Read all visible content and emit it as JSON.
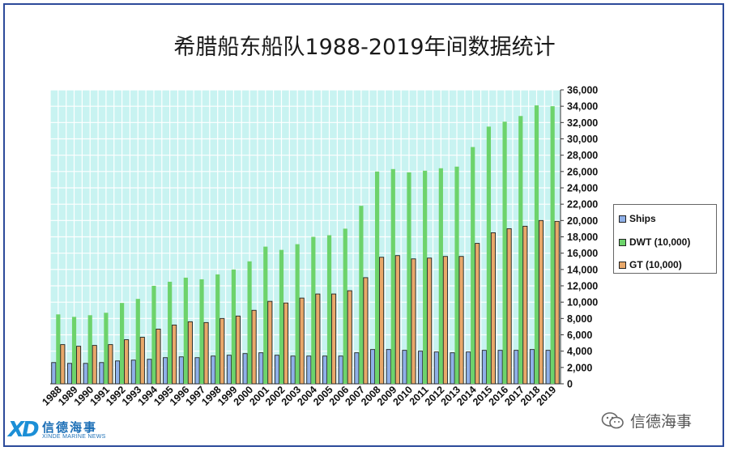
{
  "title": "希腊船东船队1988-2019年间数据统计",
  "colors": {
    "ships": "#8fb0e8",
    "dwt": "#6dd36b",
    "gt": "#e8a86a",
    "plot_bg": "#c8f3f1",
    "grid": "#ffffff",
    "frame": "#2c4a9a"
  },
  "chart_data": {
    "type": "bar",
    "title": "希腊船东船队1988-2019年间数据统计",
    "categories": [
      "1988",
      "1989",
      "1990",
      "1991",
      "1992",
      "1993",
      "1994",
      "1995",
      "1996",
      "1997",
      "1998",
      "1999",
      "2000",
      "2001",
      "2002",
      "2003",
      "2004",
      "2005",
      "2006",
      "2007",
      "2008",
      "2009",
      "2010",
      "2011",
      "2012",
      "2013",
      "2014",
      "2015",
      "2016",
      "2017",
      "2018",
      "2019"
    ],
    "series": [
      {
        "name": "Ships",
        "values": [
          2600,
          2500,
          2500,
          2600,
          2800,
          2900,
          3000,
          3200,
          3300,
          3200,
          3400,
          3500,
          3700,
          3800,
          3500,
          3400,
          3400,
          3400,
          3400,
          3800,
          4200,
          4200,
          4100,
          4000,
          3900,
          3800,
          3900,
          4100,
          4100,
          4100,
          4200,
          4100
        ]
      },
      {
        "name": "DWT (10,000)",
        "values": [
          8500,
          8200,
          8400,
          8700,
          9900,
          10400,
          12000,
          12500,
          13000,
          12800,
          13400,
          14000,
          15000,
          16800,
          16400,
          17100,
          18000,
          18200,
          19000,
          21800,
          26000,
          26300,
          25900,
          26100,
          26400,
          26600,
          29000,
          31500,
          32100,
          32800,
          34100,
          34000
        ]
      },
      {
        "name": "GT (10,000)",
        "values": [
          4800,
          4600,
          4700,
          4800,
          5400,
          5700,
          6700,
          7200,
          7600,
          7500,
          8000,
          8300,
          9000,
          10100,
          9900,
          10500,
          11000,
          11000,
          11400,
          13000,
          15500,
          15700,
          15300,
          15400,
          15600,
          15600,
          17200,
          18500,
          19000,
          19300,
          20000,
          19900
        ]
      }
    ],
    "ylim": [
      0,
      36000
    ],
    "y_ticks": [
      "0",
      "2,000",
      "4,000",
      "6,000",
      "8,000",
      "10,000",
      "12,000",
      "14,000",
      "16,000",
      "18,000",
      "20,000",
      "22,000",
      "24,000",
      "26,000",
      "28,000",
      "30,000",
      "32,000",
      "34,000",
      "36,000"
    ],
    "y_axis_side": "right",
    "grid": true,
    "legend_position": "right"
  },
  "legend": [
    {
      "label": "Ships"
    },
    {
      "label": "DWT (10,000)"
    },
    {
      "label": "GT (10,000)"
    }
  ],
  "logo": {
    "mark": "XD",
    "cn": "信德海事",
    "en": "XINDE MARINE NEWS"
  },
  "watermark": {
    "text": "信德海事",
    "icon": "wechat-icon"
  }
}
